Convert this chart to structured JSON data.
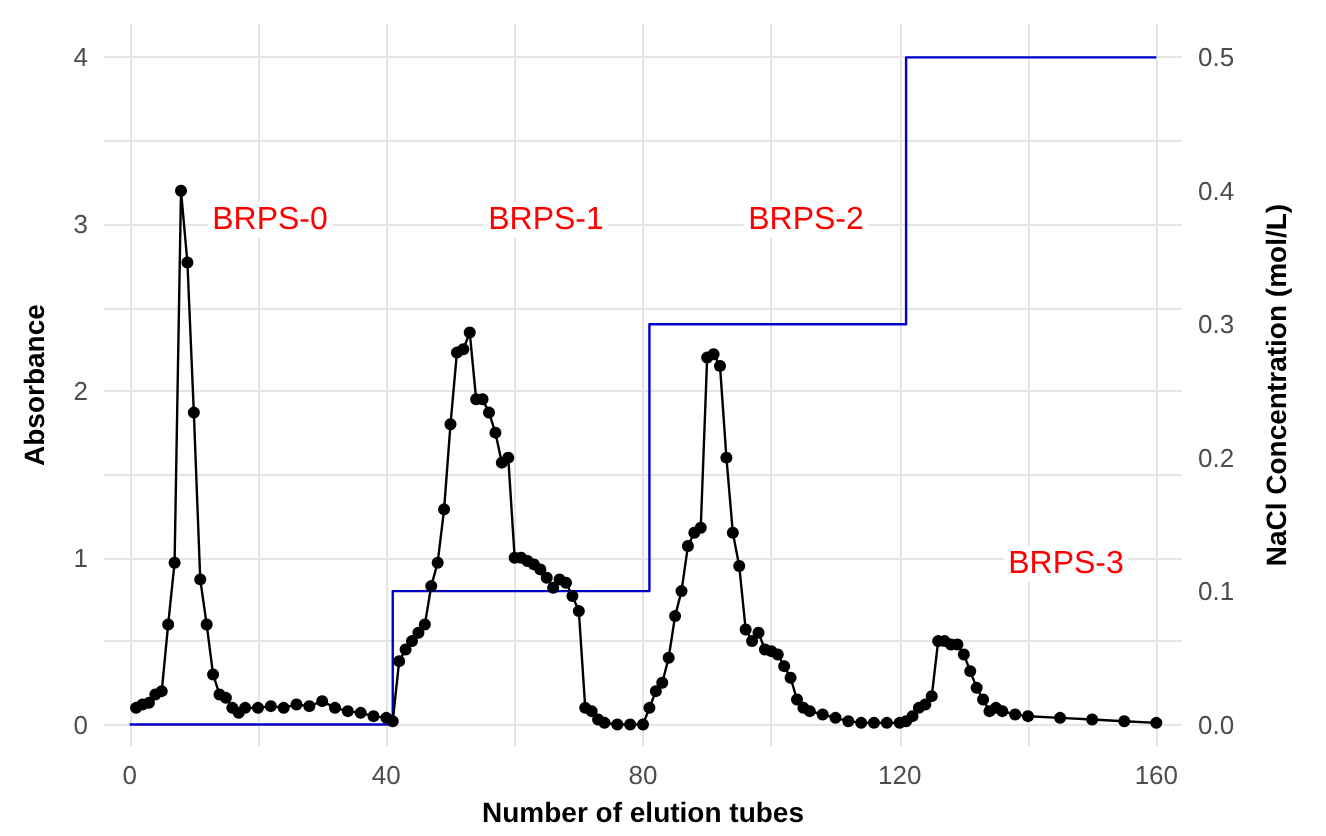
{
  "chart_data": {
    "type": "line",
    "xlabel": "Number of elution tubes",
    "ylabel": "Absorbance",
    "y2label": "NaCl Concentration (mol/L)",
    "xlim": [
      -4,
      164
    ],
    "xticks": [
      0,
      {
        "value": 20,
        "label": null
      },
      40,
      {
        "value": 60,
        "label": null
      },
      80,
      {
        "value": 100,
        "label": null
      },
      120,
      {
        "value": 140,
        "label": null
      },
      160
    ],
    "ylim": [
      -0.13,
      4.2
    ],
    "yticks": [
      0,
      {
        "value": 0.5,
        "label": null
      },
      1,
      {
        "value": 1.5,
        "label": null
      },
      2,
      {
        "value": 2.5,
        "label": null
      },
      3,
      {
        "value": 3.5,
        "label": null
      },
      4
    ],
    "y2lim": [
      -0.01625,
      0.525
    ],
    "y2ticks": [
      {
        "value": 0,
        "label": "0.0"
      },
      0.1,
      0.2,
      0.3,
      0.4,
      0.5
    ],
    "grid": true,
    "series": [
      {
        "color": "#000000",
        "marker": "circle",
        "x": [
          1,
          2,
          3,
          4,
          5,
          6,
          7,
          8,
          9,
          10,
          11,
          12,
          13,
          14,
          15,
          16,
          17,
          18,
          20,
          22,
          24,
          26,
          28,
          30,
          32,
          34,
          36,
          38,
          40,
          41,
          42,
          43,
          44,
          45,
          46,
          47,
          48,
          49,
          50,
          51,
          52,
          53,
          54,
          55,
          56,
          57,
          58,
          59,
          60,
          61,
          62,
          63,
          64,
          65,
          66,
          67,
          68,
          69,
          70,
          71,
          72,
          73,
          74,
          76,
          78,
          80,
          81,
          82,
          83,
          84,
          85,
          86,
          87,
          88,
          89,
          90,
          91,
          92,
          93,
          94,
          95,
          96,
          97,
          98,
          99,
          100,
          101,
          102,
          103,
          104,
          105,
          106,
          108,
          110,
          112,
          114,
          116,
          118,
          120,
          121,
          122,
          123,
          124,
          125,
          126,
          127,
          128,
          129,
          130,
          131,
          132,
          133,
          134,
          135,
          136,
          138,
          140,
          145,
          150,
          155,
          160
        ],
        "values": [
          0.1,
          0.12,
          0.13,
          0.18,
          0.2,
          0.6,
          0.97,
          3.2,
          2.77,
          1.87,
          0.87,
          0.6,
          0.3,
          0.18,
          0.16,
          0.1,
          0.07,
          0.1,
          0.1,
          0.11,
          0.1,
          0.12,
          0.11,
          0.14,
          0.1,
          0.08,
          0.07,
          0.05,
          0.04,
          0.02,
          0.38,
          0.45,
          0.5,
          0.55,
          0.6,
          0.83,
          0.97,
          1.29,
          1.8,
          2.23,
          2.25,
          2.35,
          1.95,
          1.95,
          1.87,
          1.75,
          1.57,
          1.6,
          1.0,
          1.0,
          0.98,
          0.96,
          0.93,
          0.88,
          0.82,
          0.87,
          0.85,
          0.77,
          0.68,
          0.1,
          0.08,
          0.03,
          0.01,
          0.0,
          0.0,
          0.0,
          0.1,
          0.2,
          0.25,
          0.4,
          0.65,
          0.8,
          1.07,
          1.15,
          1.18,
          2.2,
          2.22,
          2.15,
          1.6,
          1.15,
          0.95,
          0.57,
          0.5,
          0.55,
          0.45,
          0.44,
          0.42,
          0.35,
          0.28,
          0.15,
          0.1,
          0.08,
          0.06,
          0.04,
          0.02,
          0.01,
          0.01,
          0.01,
          0.01,
          0.02,
          0.05,
          0.1,
          0.12,
          0.17,
          0.5,
          0.5,
          0.48,
          0.48,
          0.42,
          0.32,
          0.22,
          0.15,
          0.08,
          0.1,
          0.08,
          0.06,
          0.05,
          0.04,
          0.03,
          0.02,
          0.01
        ]
      },
      {
        "type": "step",
        "axis": "y2",
        "color": "#0000cc",
        "marker": "none",
        "x": [
          0,
          41,
          81,
          121,
          160
        ],
        "values": [
          0,
          0.1,
          0.3,
          0.5,
          0.5
        ]
      }
    ],
    "annotations": [
      "BRPS-0",
      "BRPS-1",
      "BRPS-2",
      "BRPS-3"
    ]
  }
}
